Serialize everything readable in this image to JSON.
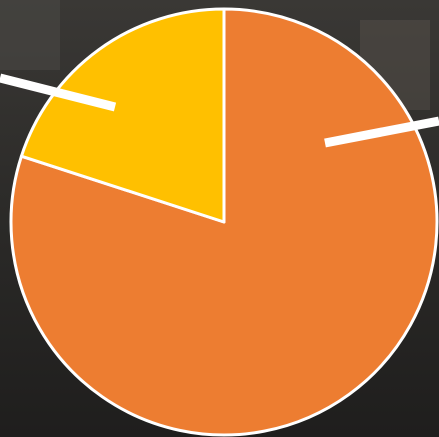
{
  "chart_data": {
    "type": "pie",
    "values": [
      80,
      20
    ],
    "colors": [
      "#ed7d31",
      "#ffc000"
    ]
  }
}
